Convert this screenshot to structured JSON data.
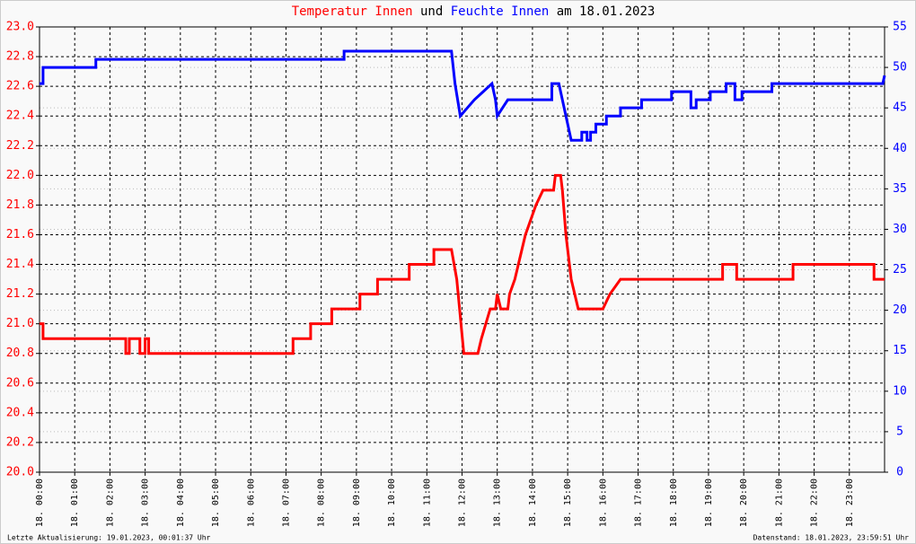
{
  "chart_data": {
    "type": "line",
    "title_parts": [
      "und",
      "am 18.01.2023"
    ],
    "annotations": [
      "Letzte Aktualisierung: 19.01.2023, 00:01:37 Uhr",
      "Datenstand: 18.01.2023, 23:59:51 Uhr"
    ],
    "xlim": [
      0,
      24
    ],
    "xticks": [
      {
        "value": 0,
        "label": "18. 00:00"
      },
      {
        "value": 1,
        "label": "18. 01:00"
      },
      {
        "value": 2,
        "label": "18. 02:00"
      },
      {
        "value": 3,
        "label": "18. 03:00"
      },
      {
        "value": 4,
        "label": "18. 04:00"
      },
      {
        "value": 5,
        "label": "18. 05:00"
      },
      {
        "value": 6,
        "label": "18. 06:00"
      },
      {
        "value": 7,
        "label": "18. 07:00"
      },
      {
        "value": 8,
        "label": "18. 08:00"
      },
      {
        "value": 9,
        "label": "18. 09:00"
      },
      {
        "value": 10,
        "label": "18. 10:00"
      },
      {
        "value": 11,
        "label": "18. 11:00"
      },
      {
        "value": 12,
        "label": "18. 12:00"
      },
      {
        "value": 13,
        "label": "18. 13:00"
      },
      {
        "value": 14,
        "label": "18. 14:00"
      },
      {
        "value": 15,
        "label": "18. 15:00"
      },
      {
        "value": 16,
        "label": "18. 16:00"
      },
      {
        "value": 17,
        "label": "18. 17:00"
      },
      {
        "value": 18,
        "label": "18. 18:00"
      },
      {
        "value": 19,
        "label": "18. 19:00"
      },
      {
        "value": 20,
        "label": "18. 20:00"
      },
      {
        "value": 21,
        "label": "18. 21:00"
      },
      {
        "value": 22,
        "label": "18. 22:00"
      },
      {
        "value": 23,
        "label": "18. 23:00"
      }
    ],
    "ylim": [
      20,
      23
    ],
    "yticks": [
      {
        "value": 20,
        "label": "20.0"
      },
      20.2,
      20.4,
      20.6,
      20.8,
      {
        "value": 21,
        "label": "21.0"
      },
      21.2,
      21.4,
      21.6,
      21.8,
      {
        "value": 22,
        "label": "22.0"
      },
      22.2,
      22.4,
      22.6,
      22.8,
      {
        "value": 23,
        "label": "23.0"
      }
    ],
    "y2lim": [
      0,
      55
    ],
    "y2ticks": [
      0,
      5,
      10,
      15,
      20,
      25,
      30,
      35,
      40,
      45,
      50,
      55
    ],
    "grid": true,
    "series": [
      {
        "name": "Temperatur Innen",
        "color": "#ff0000",
        "axis": "y",
        "x": [
          0,
          0.1,
          0.1,
          2.45,
          2.45,
          2.55,
          2.55,
          2.85,
          2.85,
          3.0,
          3.0,
          3.1,
          3.1,
          7.2,
          7.2,
          7.7,
          7.7,
          8.3,
          8.3,
          9.1,
          9.1,
          9.6,
          9.6,
          10.5,
          10.5,
          11.2,
          11.2,
          11.7,
          11.85,
          12.05,
          12.45,
          12.55,
          12.8,
          12.95,
          13.0,
          13.1,
          13.3,
          13.35,
          13.5,
          13.6,
          13.7,
          13.8,
          13.95,
          14.1,
          14.3,
          14.6,
          14.65,
          14.8,
          14.85,
          14.95,
          15.1,
          15.2,
          15.3,
          16.0,
          16.2,
          16.5,
          19.4,
          19.4,
          19.8,
          19.8,
          21.4,
          21.4,
          23.7,
          23.7,
          24
        ],
        "values": [
          21.0,
          21.0,
          20.9,
          20.9,
          20.8,
          20.8,
          20.9,
          20.9,
          20.8,
          20.8,
          20.9,
          20.9,
          20.8,
          20.8,
          20.9,
          20.9,
          21.0,
          21.0,
          21.1,
          21.1,
          21.2,
          21.2,
          21.3,
          21.3,
          21.4,
          21.4,
          21.5,
          21.5,
          21.3,
          20.8,
          20.8,
          20.9,
          21.1,
          21.1,
          21.2,
          21.1,
          21.1,
          21.2,
          21.3,
          21.4,
          21.5,
          21.6,
          21.7,
          21.8,
          21.9,
          21.9,
          22.0,
          22.0,
          21.9,
          21.6,
          21.3,
          21.2,
          21.1,
          21.1,
          21.2,
          21.3,
          21.3,
          21.4,
          21.4,
          21.3,
          21.3,
          21.4,
          21.4,
          21.3,
          21.3
        ]
      },
      {
        "name": "Feuchte Innen",
        "color": "#0000ff",
        "axis": "y2",
        "x": [
          0,
          0.1,
          0.1,
          1.6,
          1.6,
          8.65,
          8.65,
          11.7,
          11.8,
          11.95,
          12.15,
          12.35,
          12.6,
          12.85,
          12.95,
          13.0,
          13.15,
          13.3,
          14.55,
          14.55,
          14.75,
          14.85,
          14.95,
          15.05,
          15.1,
          15.4,
          15.4,
          15.55,
          15.55,
          15.65,
          15.65,
          15.8,
          15.8,
          16.1,
          16.1,
          16.5,
          16.5,
          17.1,
          17.1,
          17.95,
          17.95,
          18.5,
          18.5,
          18.65,
          18.65,
          19.05,
          19.05,
          19.5,
          19.5,
          19.75,
          19.75,
          19.95,
          19.95,
          20.8,
          20.8,
          23.95,
          24
        ],
        "values": [
          48,
          48,
          50,
          50,
          51,
          51,
          52,
          52,
          48,
          44,
          45,
          46,
          47,
          48,
          46,
          44,
          45,
          46,
          46,
          48,
          48,
          46,
          44,
          42,
          41,
          41,
          42,
          42,
          41,
          41,
          42,
          42,
          43,
          43,
          44,
          44,
          45,
          45,
          46,
          46,
          47,
          47,
          45,
          45,
          46,
          46,
          47,
          47,
          48,
          48,
          46,
          46,
          47,
          47,
          48,
          48,
          49
        ]
      }
    ]
  }
}
